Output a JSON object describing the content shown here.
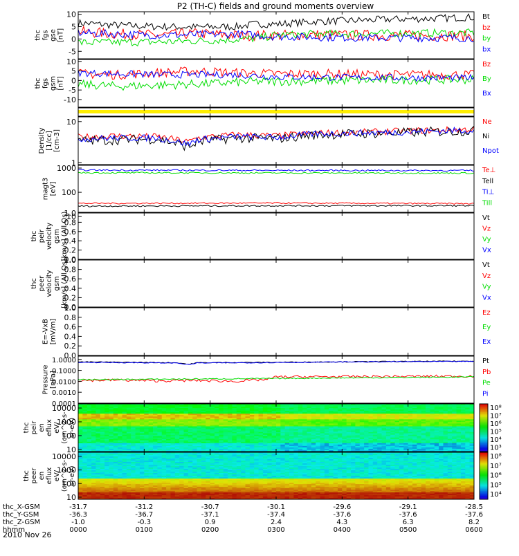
{
  "title": "P2 (TH-C) fields and ground moments overview",
  "date_label": "2010 Nov 26",
  "colors": {
    "black": "#000000",
    "red": "#ff0000",
    "green": "#00dd00",
    "blue": "#0000ff",
    "yellow": "#ffee00"
  },
  "colorbars": {
    "top": [
      "10⁸",
      "10⁷",
      "10⁶",
      "10⁵",
      "10⁴",
      "10³"
    ],
    "bottom": [
      "10⁸",
      "10⁷",
      "10⁶",
      "10⁵",
      "10⁴"
    ]
  },
  "orbit_table": {
    "rows": [
      {
        "label": "thc_X-GSM",
        "values": [
          "-31.7",
          "-31.2",
          "-30.7",
          "-30.1",
          "-29.6",
          "-29.1",
          "-28.5"
        ]
      },
      {
        "label": "thc_Y-GSM",
        "values": [
          "-36.3",
          "-36.7",
          "-37.1",
          "-37.4",
          "-37.6",
          "-37.6",
          "-37.6"
        ]
      },
      {
        "label": "thc_Z-GSM",
        "values": [
          "-1.0",
          "-0.3",
          "0.9",
          "2.4",
          "4.3",
          "6.3",
          "8.2"
        ]
      },
      {
        "label": "hhmm",
        "values": [
          "0000",
          "0100",
          "0200",
          "0300",
          "0400",
          "0500",
          "0600"
        ]
      }
    ]
  },
  "chart_data": {
    "type": "line",
    "title": "P2 (TH-C) fields and ground moments overview",
    "x": {
      "ticks": [
        "0000",
        "0100",
        "0200",
        "0300",
        "0400",
        "0500",
        "0600"
      ],
      "range": [
        "00:00",
        "06:00"
      ],
      "unit": "hhmm"
    },
    "panels": [
      {
        "id": "fgs_gse",
        "ylabel": [
          "thc",
          "fgs",
          "gse",
          "[nT]"
        ],
        "scale": "linear",
        "ylim": [
          -8,
          11
        ],
        "yticks": [
          "10",
          "5",
          "0",
          "-5"
        ],
        "series": [
          {
            "name": "Bt",
            "color": "black",
            "profile": [
              [
                0,
                6.5
              ],
              [
                0.1,
                5.5
              ],
              [
                0.2,
                5
              ],
              [
                0.3,
                4.8
              ],
              [
                0.4,
                5
              ],
              [
                0.45,
                6
              ],
              [
                0.5,
                6
              ],
              [
                0.6,
                7
              ],
              [
                0.7,
                7.5
              ],
              [
                0.8,
                8
              ],
              [
                0.9,
                8.3
              ],
              [
                1,
                8.8
              ]
            ],
            "noise": 1.5
          },
          {
            "name": "bz",
            "color": "red",
            "profile": [
              [
                0,
                3
              ],
              [
                0.1,
                2
              ],
              [
                0.2,
                1.5
              ],
              [
                0.3,
                2.2
              ],
              [
                0.4,
                1.5
              ],
              [
                0.5,
                1.5
              ],
              [
                0.6,
                1.7
              ],
              [
                0.7,
                1.5
              ],
              [
                1,
                1.3
              ]
            ],
            "noise": 2.2
          },
          {
            "name": "by",
            "color": "green",
            "profile": [
              [
                0,
                -1.5
              ],
              [
                0.2,
                -1.2
              ],
              [
                0.35,
                -0.5
              ],
              [
                0.45,
                0.2
              ],
              [
                0.5,
                1.5
              ],
              [
                0.6,
                2
              ],
              [
                0.8,
                2.3
              ],
              [
                1,
                2.5
              ]
            ],
            "noise": 1.6
          },
          {
            "name": "bx",
            "color": "blue",
            "profile": [
              [
                0,
                2.5
              ],
              [
                0.2,
                1.5
              ],
              [
                0.4,
                2
              ],
              [
                0.45,
                1.5
              ],
              [
                0.5,
                1
              ],
              [
                0.7,
                0.5
              ],
              [
                1,
                0.4
              ]
            ],
            "noise": 1.6
          }
        ]
      },
      {
        "id": "fgs_gsm",
        "ylabel": [
          "thc",
          "fgs",
          "gsm",
          "[nT]"
        ],
        "scale": "linear",
        "ylim": [
          -14,
          11
        ],
        "yticks": [
          "10",
          "5",
          "0",
          "-5",
          "-10"
        ],
        "series": [
          {
            "name": "Bz",
            "color": "red",
            "profile": [
              [
                0,
                3.5
              ],
              [
                0.1,
                3
              ],
              [
                0.2,
                4
              ],
              [
                0.3,
                5
              ],
              [
                0.4,
                4
              ],
              [
                0.5,
                3.5
              ],
              [
                0.6,
                3.5
              ],
              [
                0.8,
                3
              ],
              [
                1,
                3
              ]
            ],
            "noise": 2.5
          },
          {
            "name": "By",
            "color": "green",
            "profile": [
              [
                0,
                -2
              ],
              [
                0.1,
                -3
              ],
              [
                0.2,
                -2.5
              ],
              [
                0.35,
                -1.5
              ],
              [
                0.45,
                -0.5
              ],
              [
                0.5,
                -0.5
              ],
              [
                0.7,
                0
              ],
              [
                1,
                0.5
              ]
            ],
            "noise": 2.3
          },
          {
            "name": "Bx",
            "color": "blue",
            "profile": [
              [
                0,
                4
              ],
              [
                0.2,
                3
              ],
              [
                0.4,
                3
              ],
              [
                0.5,
                2
              ],
              [
                0.7,
                1.5
              ],
              [
                1,
                1.3
              ]
            ],
            "noise": 1.8
          }
        ]
      },
      {
        "id": "status_bar",
        "ylabel": [],
        "scale": "none",
        "ylim": [
          0,
          1
        ],
        "yticks": [],
        "series": []
      },
      {
        "id": "density",
        "ylabel": [
          "Density",
          "[1/cc]",
          "[cm-3]"
        ],
        "scale": "log",
        "ylim": [
          0.9,
          13
        ],
        "yticks": [
          "10",
          "1"
        ],
        "series": [
          {
            "name": "Ne",
            "color": "red",
            "profile": [
              [
                0,
                4.2
              ],
              [
                0.1,
                4.5
              ],
              [
                0.2,
                4.3
              ],
              [
                0.28,
                3.2
              ],
              [
                0.3,
                4
              ],
              [
                0.4,
                4.8
              ],
              [
                0.5,
                4.5
              ],
              [
                0.6,
                5.2
              ],
              [
                0.7,
                5.5
              ],
              [
                0.8,
                5.8
              ],
              [
                1,
                6.5
              ]
            ],
            "noise": 0.08
          },
          {
            "name": "Ni",
            "color": "black",
            "profile": [
              [
                0,
                3.4
              ],
              [
                0.1,
                3.6
              ],
              [
                0.2,
                3.8
              ],
              [
                0.28,
                2.4
              ],
              [
                0.3,
                3.2
              ],
              [
                0.4,
                4
              ],
              [
                0.5,
                3.8
              ],
              [
                0.6,
                4.8
              ],
              [
                0.8,
                5.3
              ],
              [
                1,
                6
              ]
            ],
            "noise": 0.12
          },
          {
            "name": "Npot",
            "color": "blue",
            "profile": [
              [
                0,
                3.8
              ],
              [
                0.1,
                4
              ],
              [
                0.2,
                4
              ],
              [
                0.28,
                2.8
              ],
              [
                0.3,
                3.6
              ],
              [
                0.4,
                4.3
              ],
              [
                0.5,
                4.1
              ],
              [
                0.6,
                5
              ],
              [
                0.8,
                5.5
              ],
              [
                1,
                6.2
              ]
            ],
            "noise": 0.08
          }
        ]
      },
      {
        "id": "temperature",
        "ylabel": [
          "magt3",
          "[eV]"
        ],
        "scale": "log",
        "ylim": [
          15,
          1300
        ],
        "yticks": [
          "1000",
          "100",
          "10"
        ],
        "series": [
          {
            "name": "Te⊥",
            "color": "red",
            "profile": [
              [
                0,
                35
              ],
              [
                0.5,
                36
              ],
              [
                1,
                34
              ]
            ],
            "noise": 0.03
          },
          {
            "name": "Tell",
            "color": "black",
            "profile": [
              [
                0,
                27
              ],
              [
                0.5,
                28
              ],
              [
                1,
                28
              ]
            ],
            "noise": 0.03
          },
          {
            "name": "Ti⊥",
            "color": "blue",
            "profile": [
              [
                0,
                820
              ],
              [
                0.5,
                800
              ],
              [
                1,
                790
              ]
            ],
            "noise": 0.03
          },
          {
            "name": "Till",
            "color": "green",
            "profile": [
              [
                0,
                640
              ],
              [
                0.5,
                630
              ],
              [
                1,
                620
              ]
            ],
            "noise": 0.03
          }
        ]
      },
      {
        "id": "peir_velocity",
        "ylabel": [
          "thc",
          "peir",
          "velocity",
          "gsm",
          "[km/s] (All Qs)"
        ],
        "scale": "linear",
        "ylim": [
          0,
          1
        ],
        "yticks": [
          "1.0",
          "0.8",
          "0.6",
          "0.4",
          "0.2",
          "0.0"
        ],
        "series": [
          {
            "name": "Vt",
            "color": "black"
          },
          {
            "name": "Vz",
            "color": "red"
          },
          {
            "name": "Vy",
            "color": "green"
          },
          {
            "name": "Vx",
            "color": "blue"
          }
        ]
      },
      {
        "id": "peer_velocity",
        "ylabel": [
          "thc",
          "peer",
          "velocity",
          "gsm",
          "[km/s] (All Qs)"
        ],
        "scale": "linear",
        "ylim": [
          0,
          1
        ],
        "yticks": [
          "1.0",
          "0.8",
          "0.6",
          "0.4",
          "0.2",
          "0.0"
        ],
        "series": [
          {
            "name": "Vt",
            "color": "black"
          },
          {
            "name": "Vz",
            "color": "red"
          },
          {
            "name": "Vy",
            "color": "green"
          },
          {
            "name": "Vx",
            "color": "blue"
          }
        ]
      },
      {
        "id": "e_vxb",
        "ylabel": [
          "E=-VxB",
          "[mV/m]"
        ],
        "scale": "linear",
        "ylim": [
          0,
          1
        ],
        "yticks": [
          "1.0",
          "0.8",
          "0.6",
          "0.4",
          "0.2",
          "0.0"
        ],
        "series": [
          {
            "name": "Ez",
            "color": "red"
          },
          {
            "name": "Ey",
            "color": "green"
          },
          {
            "name": "Ex",
            "color": "blue"
          }
        ]
      },
      {
        "id": "pressure",
        "ylabel": [
          "Pressure",
          "[nPa]"
        ],
        "scale": "log",
        "ylim": [
          0.0001,
          2
        ],
        "yticks": [
          "1.0000",
          "0.1000",
          "0.0100",
          "0.0010",
          "0.0001"
        ],
        "series": [
          {
            "name": "Pt",
            "color": "black",
            "profile": [
              [
                0,
                0.6
              ],
              [
                0.25,
                0.5
              ],
              [
                0.28,
                0.35
              ],
              [
                0.3,
                0.5
              ],
              [
                0.5,
                0.55
              ],
              [
                0.7,
                0.62
              ],
              [
                1,
                0.7
              ]
            ],
            "noise": 0.04
          },
          {
            "name": "Pb",
            "color": "red",
            "profile": [
              [
                0,
                0.012
              ],
              [
                0.1,
                0.013
              ],
              [
                0.2,
                0.011
              ],
              [
                0.3,
                0.012
              ],
              [
                0.4,
                0.01
              ],
              [
                0.48,
                0.015
              ],
              [
                0.5,
                0.025
              ],
              [
                0.7,
                0.027
              ],
              [
                1,
                0.03
              ]
            ],
            "noise": 0.12
          },
          {
            "name": "Pe",
            "color": "green",
            "profile": [
              [
                0,
                0.014
              ],
              [
                0.5,
                0.018
              ],
              [
                1,
                0.025
              ]
            ],
            "noise": 0.05
          },
          {
            "name": "Pi",
            "color": "blue",
            "profile": [
              [
                0,
                0.55
              ],
              [
                0.25,
                0.47
              ],
              [
                0.28,
                0.33
              ],
              [
                0.3,
                0.47
              ],
              [
                0.5,
                0.52
              ],
              [
                0.7,
                0.6
              ],
              [
                1,
                0.66
              ]
            ],
            "noise": 0.04
          }
        ]
      },
      {
        "id": "peir_eflux",
        "ylabel": [
          "thc",
          "peir",
          "en",
          "eflux",
          "eV/",
          "(cm^2-s-",
          "sr-eV)"
        ],
        "scale": "log",
        "ylim": [
          7,
          20000
        ],
        "yticks": [
          "10000",
          "1000",
          "100",
          "10"
        ],
        "type": "heatmap"
      },
      {
        "id": "peer_eflux",
        "ylabel": [
          "thc",
          "peer",
          "en",
          "eflux",
          "eV/",
          "(cm^2-s-",
          "sr-eV)"
        ],
        "scale": "log",
        "ylim": [
          7,
          20000
        ],
        "yticks": [
          "10000",
          "1000",
          "100",
          "10"
        ],
        "type": "heatmap"
      }
    ]
  }
}
